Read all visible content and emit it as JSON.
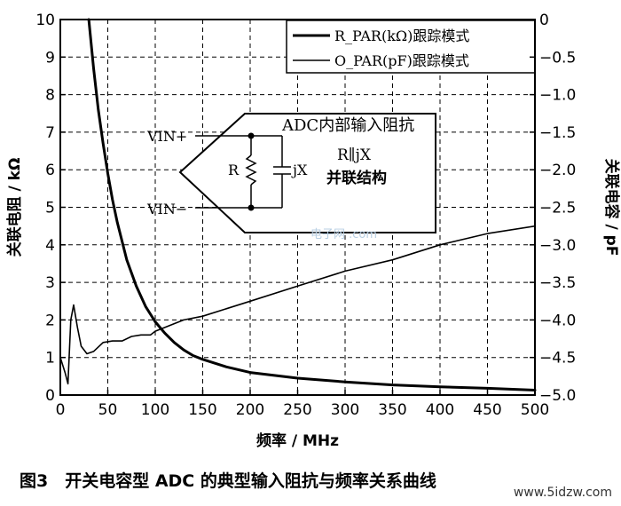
{
  "chart_data": {
    "type": "line",
    "xlabel": "频率 / MHz",
    "ylabel_left": "关联电阻 / kΩ",
    "ylabel_right": "关联电容 / pF",
    "xlim": [
      0,
      500
    ],
    "ylim_left": [
      0,
      10
    ],
    "ylim_right": [
      -5.0,
      0
    ],
    "x_ticks": [
      "0",
      "50",
      "100",
      "150",
      "200",
      "250",
      "300",
      "350",
      "400",
      "450",
      "500"
    ],
    "y_left_ticks": [
      "0",
      "1",
      "2",
      "3",
      "4",
      "5",
      "6",
      "7",
      "8",
      "9",
      "10"
    ],
    "y_right_ticks": [
      "0",
      "−0.5",
      "−1.0",
      "−1.5",
      "−2.0",
      "−2.5",
      "−3.0",
      "−3.5",
      "−4.0",
      "−4.5",
      "−5.0"
    ],
    "grid": true,
    "legend_position": "top-right",
    "series": [
      {
        "name": "R_PAR(kΩ)跟踪模式",
        "axis": "left",
        "style": "thick",
        "x": [
          30,
          35,
          40,
          45,
          50,
          55,
          60,
          70,
          80,
          90,
          100,
          110,
          120,
          130,
          140,
          150,
          175,
          200,
          250,
          300,
          350,
          400,
          450,
          500
        ],
        "y": [
          10.0,
          8.7,
          7.6,
          6.7,
          5.9,
          5.2,
          4.6,
          3.6,
          2.9,
          2.35,
          1.95,
          1.65,
          1.4,
          1.2,
          1.05,
          0.95,
          0.75,
          0.6,
          0.45,
          0.35,
          0.27,
          0.22,
          0.18,
          0.13
        ]
      },
      {
        "name": "O_PAR(pF)跟踪模式",
        "axis": "right",
        "style": "thin",
        "x": [
          0,
          5,
          8,
          11,
          14,
          18,
          22,
          28,
          35,
          45,
          55,
          65,
          75,
          85,
          95,
          100,
          110,
          120,
          130,
          150,
          200,
          250,
          300,
          350,
          400,
          450,
          500
        ],
        "y": [
          -4.5,
          -4.7,
          -4.85,
          -4.0,
          -3.8,
          -4.1,
          -4.35,
          -4.45,
          -4.42,
          -4.3,
          -4.28,
          -4.28,
          -4.22,
          -4.2,
          -4.2,
          -4.15,
          -4.1,
          -4.05,
          -4.0,
          -3.95,
          -3.75,
          -3.55,
          -3.35,
          -3.2,
          -3.0,
          -2.85,
          -2.75
        ]
      }
    ],
    "annotation": {
      "title": "ADC内部输入阻抗",
      "vin_plus": "VIN+",
      "vin_minus": "VIN−",
      "resistor_label": "R",
      "reactance_label": "jX",
      "formula": "R∥jX",
      "description": "并联结构"
    },
    "watermark_text": "电子网 .com"
  },
  "caption": "图3　开关电容型 ADC 的典型输入阻抗与频率关系曲线",
  "site_watermark": "www.5idzw.com"
}
